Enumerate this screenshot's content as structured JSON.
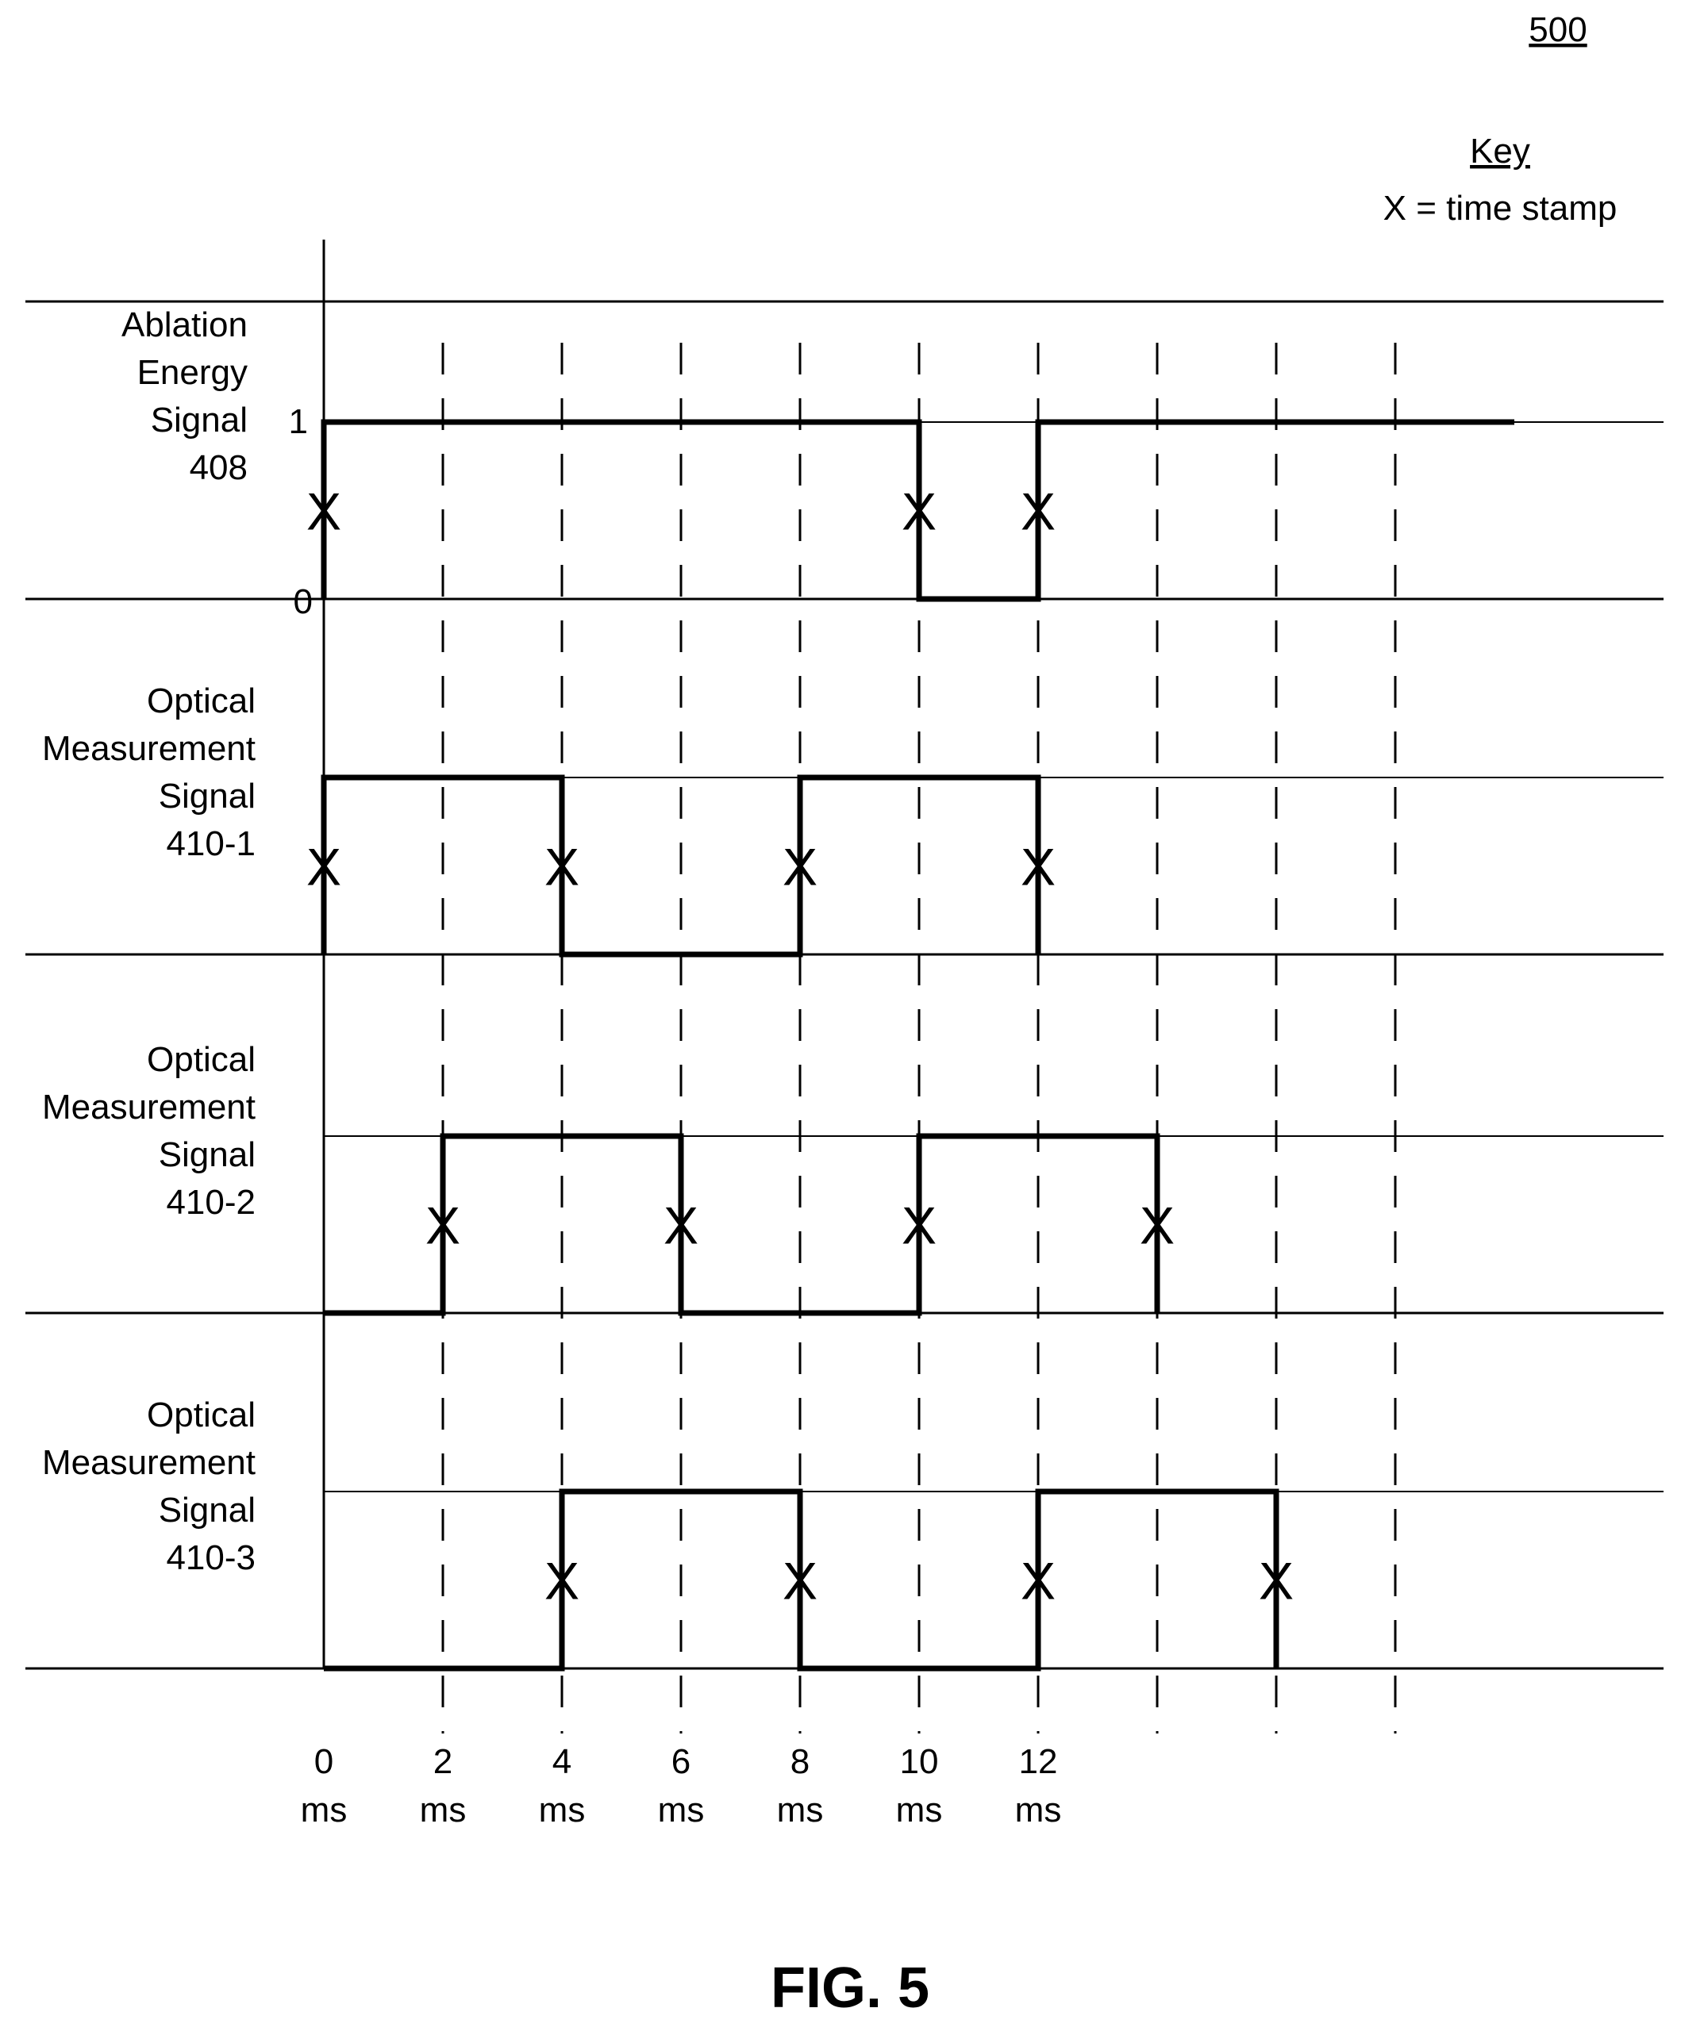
{
  "figure": {
    "number": "500",
    "caption": "FIG. 5"
  },
  "key": {
    "title": "Key",
    "entry": "X = time stamp"
  },
  "chart_data": {
    "type": "line",
    "step": true,
    "xlabel": "",
    "ylabel": "",
    "x_ticks": [
      0,
      2,
      4,
      6,
      8,
      10,
      12,
      14,
      16,
      18
    ],
    "tick_labels": [
      {
        "x": 0,
        "value": "0",
        "unit": "ms"
      },
      {
        "x": 2,
        "value": "2",
        "unit": "ms"
      },
      {
        "x": 4,
        "value": "4",
        "unit": "ms"
      },
      {
        "x": 6,
        "value": "6",
        "unit": "ms"
      },
      {
        "x": 8,
        "value": "8",
        "unit": "ms"
      },
      {
        "x": 10,
        "value": "10",
        "unit": "ms"
      },
      {
        "x": 12,
        "value": "12",
        "unit": "ms"
      }
    ],
    "y_levels": [
      "0",
      "1"
    ],
    "xlim": [
      0,
      20
    ],
    "series": [
      {
        "name_lines": [
          "Ablation",
          "Energy",
          "Signal",
          "408"
        ],
        "show_levels": true,
        "points": [
          [
            0,
            0
          ],
          [
            0,
            1
          ],
          [
            10,
            1
          ],
          [
            10,
            0
          ],
          [
            12,
            0
          ],
          [
            12,
            1
          ],
          [
            20,
            1
          ]
        ],
        "timestamps": [
          0,
          10,
          12
        ]
      },
      {
        "name_lines": [
          "Optical",
          "Measurement",
          "Signal",
          "410-1"
        ],
        "show_levels": false,
        "points": [
          [
            0,
            0
          ],
          [
            0,
            1
          ],
          [
            4,
            1
          ],
          [
            4,
            0
          ],
          [
            8,
            0
          ],
          [
            8,
            1
          ],
          [
            12,
            1
          ],
          [
            12,
            0
          ]
        ],
        "timestamps": [
          0,
          4,
          8,
          12
        ]
      },
      {
        "name_lines": [
          "Optical",
          "Measurement",
          "Signal",
          "410-2"
        ],
        "show_levels": false,
        "points": [
          [
            0,
            0
          ],
          [
            2,
            0
          ],
          [
            2,
            1
          ],
          [
            6,
            1
          ],
          [
            6,
            0
          ],
          [
            10,
            0
          ],
          [
            10,
            1
          ],
          [
            14,
            1
          ],
          [
            14,
            0
          ]
        ],
        "timestamps": [
          2,
          6,
          10,
          14
        ]
      },
      {
        "name_lines": [
          "Optical",
          "Measurement",
          "Signal",
          "410-3"
        ],
        "show_levels": false,
        "points": [
          [
            0,
            0
          ],
          [
            4,
            0
          ],
          [
            4,
            1
          ],
          [
            8,
            1
          ],
          [
            8,
            0
          ],
          [
            12,
            0
          ],
          [
            12,
            1
          ],
          [
            16,
            1
          ],
          [
            16,
            0
          ]
        ],
        "timestamps": [
          4,
          8,
          12,
          16
        ]
      }
    ]
  }
}
